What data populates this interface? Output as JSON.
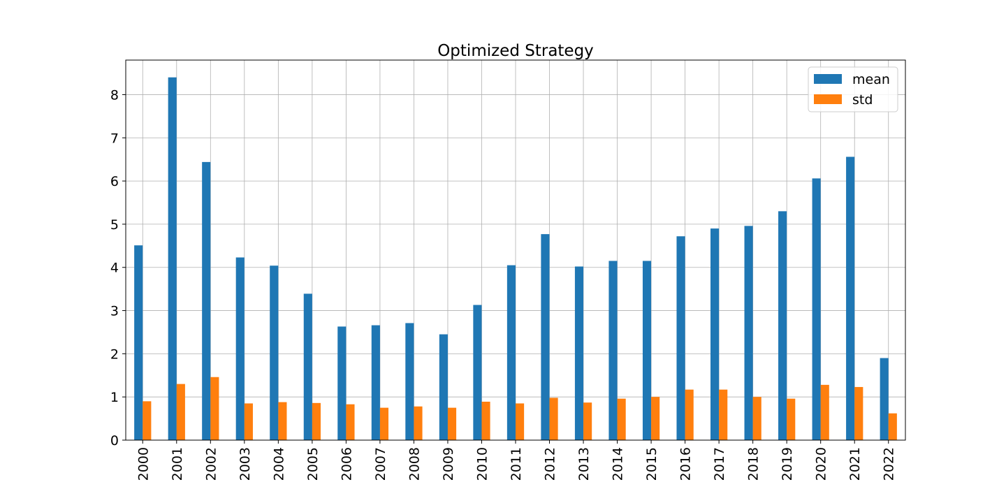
{
  "chart_data": {
    "type": "bar",
    "title": "Optimized Strategy",
    "xlabel": "",
    "ylabel": "",
    "categories": [
      "2000",
      "2001",
      "2002",
      "2003",
      "2004",
      "2005",
      "2006",
      "2007",
      "2008",
      "2009",
      "2010",
      "2011",
      "2012",
      "2013",
      "2014",
      "2015",
      "2016",
      "2017",
      "2018",
      "2019",
      "2020",
      "2021",
      "2022"
    ],
    "series": [
      {
        "name": "mean",
        "color": "#1f77b4",
        "values": [
          4.51,
          8.4,
          6.44,
          4.23,
          4.04,
          3.39,
          2.63,
          2.66,
          2.71,
          2.45,
          3.13,
          4.05,
          4.77,
          4.02,
          4.15,
          4.15,
          4.72,
          4.9,
          4.96,
          5.3,
          6.06,
          6.56,
          1.9
        ]
      },
      {
        "name": "std",
        "color": "#ff7f0e",
        "values": [
          0.9,
          1.3,
          1.46,
          0.85,
          0.88,
          0.86,
          0.83,
          0.75,
          0.78,
          0.75,
          0.89,
          0.85,
          0.98,
          0.87,
          0.96,
          1.0,
          1.17,
          1.17,
          1.0,
          0.96,
          1.28,
          1.23,
          0.62
        ]
      }
    ],
    "ylim": [
      0,
      8.8
    ],
    "yticks": [
      "0",
      "1",
      "2",
      "3",
      "4",
      "5",
      "6",
      "7",
      "8"
    ],
    "grid": true,
    "legend_position": "top-right"
  }
}
